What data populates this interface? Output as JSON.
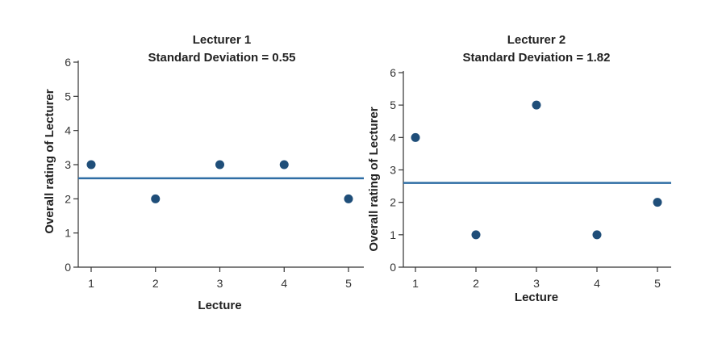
{
  "chart_data": [
    {
      "type": "scatter",
      "title": "Lecturer 1",
      "subtitle": "Standard Deviation = 0.55",
      "xlabel": "Lecture",
      "ylabel": "Overall rating of Lecturer",
      "x": [
        1,
        2,
        3,
        4,
        5
      ],
      "y": [
        3,
        2,
        3,
        3,
        2
      ],
      "xticks": [
        1,
        2,
        3,
        4,
        5
      ],
      "yticks": [
        0,
        1,
        2,
        3,
        4,
        5,
        6
      ],
      "ylim": [
        0,
        6
      ],
      "mean_line": 2.6,
      "grid": false,
      "colors": {
        "points": "#1f4e79",
        "mean_line": "#2e6da4"
      }
    },
    {
      "type": "scatter",
      "title": "Lecturer 2",
      "subtitle": "Standard Deviation = 1.82",
      "xlabel": "Lecture",
      "ylabel": "Overall rating of Lecturer",
      "x": [
        1,
        2,
        3,
        4,
        5
      ],
      "y": [
        4,
        1,
        5,
        1,
        2
      ],
      "xticks": [
        1,
        2,
        3,
        4,
        5
      ],
      "yticks": [
        0,
        1,
        2,
        3,
        4,
        5,
        6
      ],
      "ylim": [
        0,
        6
      ],
      "mean_line": 2.6,
      "grid": false,
      "colors": {
        "points": "#1f4e79",
        "mean_line": "#2e6da4"
      }
    }
  ]
}
